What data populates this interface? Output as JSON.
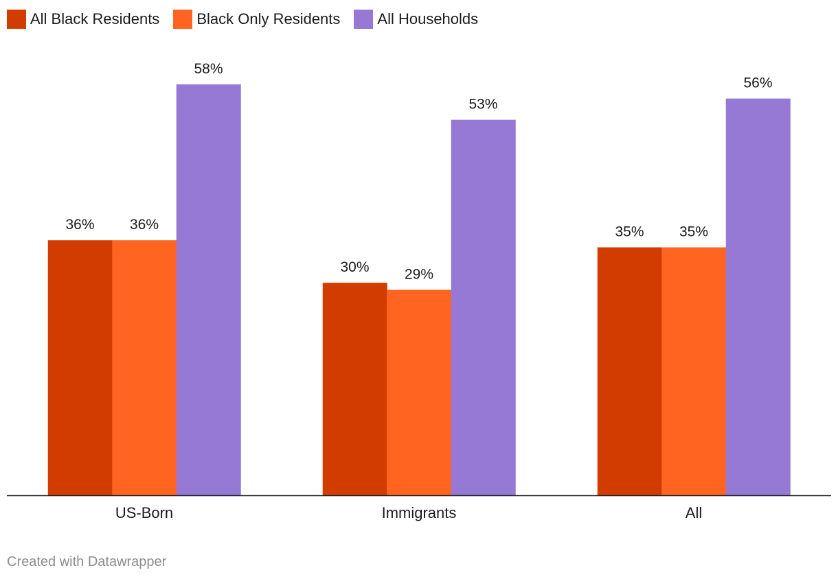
{
  "legend": [
    {
      "label": "All Black Residents",
      "color": "#d23c00"
    },
    {
      "label": "Black Only Residents",
      "color": "#ff6420"
    },
    {
      "label": "All Households",
      "color": "#9679d4"
    }
  ],
  "credit": "Created with Datawrapper",
  "chart_data": {
    "type": "bar",
    "title": "",
    "xlabel": "",
    "ylabel": "",
    "ylim": [
      0,
      58
    ],
    "categories": [
      "US-Born",
      "Immigrants",
      "All"
    ],
    "series": [
      {
        "name": "All Black Residents",
        "color": "#d23c00",
        "values": [
          36,
          30,
          35
        ],
        "labels": [
          "36%",
          "30%",
          "35%"
        ]
      },
      {
        "name": "Black Only Residents",
        "color": "#ff6420",
        "values": [
          36,
          29,
          35
        ],
        "labels": [
          "36%",
          "29%",
          "35%"
        ]
      },
      {
        "name": "All Households",
        "color": "#9679d4",
        "values": [
          58,
          53,
          56
        ],
        "labels": [
          "58%",
          "53%",
          "56%"
        ]
      }
    ],
    "legend_position": "top-left",
    "grid": false
  }
}
